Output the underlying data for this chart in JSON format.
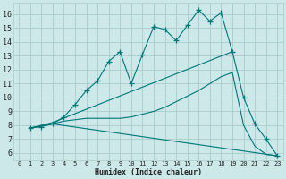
{
  "xlabel": "Humidex (Indice chaleur)",
  "bg_color": "#cce8e8",
  "grid_color": "#aacccc",
  "line_color": "#007777",
  "xlim": [
    -0.5,
    23.5
  ],
  "ylim": [
    5.5,
    16.8
  ],
  "xticks": [
    0,
    1,
    2,
    3,
    4,
    5,
    6,
    7,
    8,
    9,
    10,
    11,
    12,
    13,
    14,
    15,
    16,
    17,
    18,
    19,
    20,
    21,
    22,
    23
  ],
  "yticks": [
    6,
    7,
    8,
    9,
    10,
    11,
    12,
    13,
    14,
    15,
    16
  ],
  "lines": [
    {
      "x": [
        1,
        2,
        3,
        4,
        5,
        6,
        7,
        8,
        9,
        10,
        11,
        12,
        13,
        14,
        15,
        16,
        17,
        18,
        19,
        20,
        21,
        22,
        23
      ],
      "y": [
        7.8,
        7.9,
        8.1,
        8.6,
        9.5,
        10.5,
        11.2,
        12.6,
        13.3,
        11.0,
        13.1,
        15.1,
        14.9,
        14.1,
        15.2,
        16.3,
        15.5,
        16.1,
        13.3,
        10.0,
        8.1,
        7.0,
        5.8
      ],
      "marker": true
    },
    {
      "x": [
        1,
        3,
        19
      ],
      "y": [
        7.8,
        8.2,
        13.3
      ],
      "marker": false
    },
    {
      "x": [
        1,
        3,
        23
      ],
      "y": [
        7.8,
        8.1,
        5.8
      ],
      "marker": false
    },
    {
      "x": [
        1,
        3,
        4,
        5,
        6,
        7,
        8,
        9,
        10,
        11,
        12,
        13,
        14,
        15,
        16,
        17,
        18,
        19,
        20,
        21,
        22,
        23
      ],
      "y": [
        7.8,
        8.1,
        8.3,
        8.4,
        8.5,
        8.5,
        8.5,
        8.5,
        8.6,
        8.8,
        9.0,
        9.3,
        9.7,
        10.1,
        10.5,
        11.0,
        11.5,
        11.8,
        8.0,
        6.5,
        5.9,
        5.8
      ],
      "marker": false
    }
  ]
}
